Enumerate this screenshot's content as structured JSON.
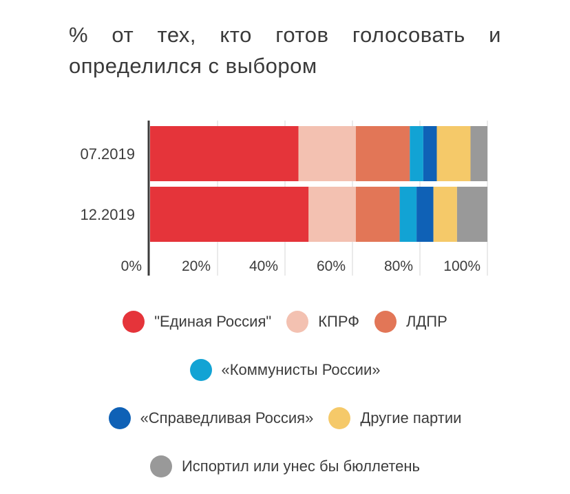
{
  "title": "% от тех, кто готов голосовать и определился с выбором",
  "chart_data": {
    "type": "bar",
    "orientation": "horizontal",
    "stacked": true,
    "normalized": true,
    "categories": [
      "07.2019",
      "12.2019"
    ],
    "series": [
      {
        "name": "\"Единая Россия\"",
        "color": "#e5343a",
        "values": [
          44,
          47
        ]
      },
      {
        "name": "КПРФ",
        "color": "#f3c1b1",
        "values": [
          17,
          14
        ]
      },
      {
        "name": "ЛДПР",
        "color": "#e27657",
        "values": [
          16,
          13
        ]
      },
      {
        "name": "«Коммунисты России»",
        "color": "#12a3d4",
        "values": [
          4,
          5
        ]
      },
      {
        "name": "«Справедливая Россия»",
        "color": "#0f61b6",
        "values": [
          4,
          5
        ]
      },
      {
        "name": "Другие партии",
        "color": "#f5c969",
        "values": [
          10,
          7
        ]
      },
      {
        "name": "Испортил или унес бы бюллетень",
        "color": "#999999",
        "values": [
          5,
          9
        ]
      }
    ],
    "xlim": [
      0,
      100
    ],
    "xticks": [
      "0%",
      "20%",
      "40%",
      "60%",
      "80%",
      "100%"
    ],
    "grid": true
  }
}
